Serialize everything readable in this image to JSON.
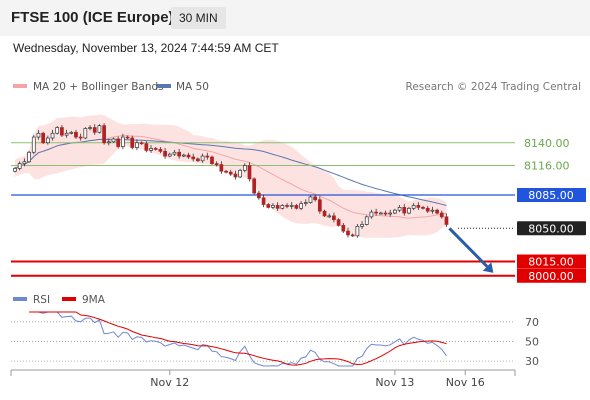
{
  "header": {
    "title": "FTSE 100 (ICE Europe)",
    "interval": "30 MIN"
  },
  "datetime": "Wednesday, November 13, 2024 7:44:59 AM CET",
  "credit": "Research © 2024 Trading Central",
  "colors": {
    "bollinger_fill": "#fde2e2",
    "ma20": "#f4a6a6",
    "ma50": "#5a78b0",
    "up_candle": "#ffffff",
    "down_candle": "#b22222",
    "support_red": "#e00000",
    "blue_level": "#2255dd",
    "green_level": "#8cc070",
    "black_level": "#222222",
    "forecast_arrow": "#2a5da8",
    "rsi": "#7088d0",
    "rsi_ma": "#e00000"
  },
  "chart_data": [
    {
      "type": "candlestick",
      "legend": [
        {
          "name": "MA 20 + Bollinger Bands",
          "color": "#f4a6a6"
        },
        {
          "name": "MA 50",
          "color": "#5a78b0"
        }
      ],
      "levels": [
        {
          "label": "8140.00",
          "value": 8140,
          "color": "#8cc070",
          "style": "solid"
        },
        {
          "label": "8116.00",
          "value": 8116,
          "color": "#8cc070",
          "style": "solid"
        },
        {
          "label": "8085.00",
          "value": 8085,
          "color": "#2255dd",
          "style": "solid"
        },
        {
          "label": "8050.00",
          "value": 8050,
          "color": "#222222",
          "style": "dotted"
        },
        {
          "label": "8015.00",
          "value": 8015,
          "color": "#e00000",
          "style": "thick"
        },
        {
          "label": "8000.00",
          "value": 8000,
          "color": "#e00000",
          "style": "thick"
        }
      ],
      "x_ticks": [
        {
          "label": "Nov 12",
          "index": 33
        },
        {
          "label": "Nov 13",
          "index": 81
        },
        {
          "label": "Nov 16",
          "index": 96
        }
      ],
      "ylim": [
        7985,
        8185
      ],
      "close": [
        8113,
        8118,
        8120,
        8130,
        8146,
        8150,
        8140,
        8145,
        8150,
        8156,
        8148,
        8150,
        8151,
        8146,
        8145,
        8155,
        8156,
        8151,
        8158,
        8140,
        8141,
        8144,
        8136,
        8146,
        8145,
        8135,
        8140,
        8139,
        8132,
        8134,
        8133,
        8131,
        8126,
        8128,
        8130,
        8126,
        8127,
        8125,
        8123,
        8121,
        8126,
        8125,
        8118,
        8117,
        8110,
        8109,
        8107,
        8104,
        8111,
        8116,
        8102,
        8087,
        8082,
        8075,
        8072,
        8074,
        8071,
        8074,
        8073,
        8074,
        8071,
        8076,
        8077,
        8083,
        8080,
        8068,
        8063,
        8063,
        8059,
        8053,
        8047,
        8043,
        8042,
        8052,
        8054,
        8062,
        8067,
        8066,
        8066,
        8065,
        8066,
        8069,
        8072,
        8066,
        8071,
        8074,
        8072,
        8071,
        8068,
        8069,
        8066,
        8062,
        8054
      ],
      "forecast": {
        "from_index": 92,
        "from_value": 8054,
        "to_index": 102,
        "to_value": 8003
      },
      "timeline": {
        "bars_to_arrow_end": 102
      }
    },
    {
      "type": "line",
      "legend": [
        {
          "name": "RSI",
          "color": "#7088d0"
        },
        {
          "name": "9MA",
          "color": "#e00000"
        }
      ],
      "levels": [
        {
          "label": "70",
          "value": 70
        },
        {
          "label": "50",
          "value": 50
        },
        {
          "label": "30",
          "value": 30
        }
      ],
      "ylim": [
        25,
        80
      ],
      "rsi_note": "RSI series computed from candlestick close values (14-period); 9MA is its 9-period moving average"
    }
  ]
}
